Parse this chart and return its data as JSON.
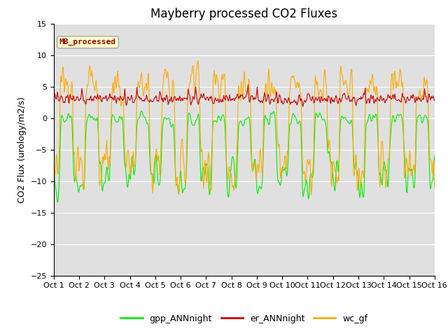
{
  "title": "Mayberry processed CO2 Fluxes",
  "ylabel": "CO2 Flux (urology/m2/s)",
  "ylim": [
    -25,
    15
  ],
  "yticks": [
    -25,
    -20,
    -15,
    -10,
    -5,
    0,
    5,
    10,
    15
  ],
  "n_days": 15,
  "n_per_day": 48,
  "gpp_color": "#00ee00",
  "er_color": "#cc0000",
  "wc_color": "#ffaa00",
  "bg_color": "#e0e0e0",
  "legend_label": "MB_processed",
  "legend_text_color": "#990000",
  "legend_bg": "#ffffcc",
  "legend_edge": "#cccc00",
  "line_width": 0.8,
  "title_fontsize": 12,
  "axis_label_fontsize": 9,
  "tick_fontsize": 8,
  "legend_fontsize": 9,
  "x_tick_labels": [
    "Oct 1",
    "Oct 2",
    "Oct 3",
    "Oct 4",
    "Oct 5",
    "Oct 6",
    "Oct 7",
    "Oct 8",
    "Oct 9",
    "Oct 10",
    "Oct 11",
    "Oct 12",
    "Oct 13",
    "Oct 14",
    "Oct 15",
    "Oct 16"
  ],
  "series_labels": [
    "gpp_ANNnight",
    "er_ANNnight",
    "wc_gf"
  ]
}
